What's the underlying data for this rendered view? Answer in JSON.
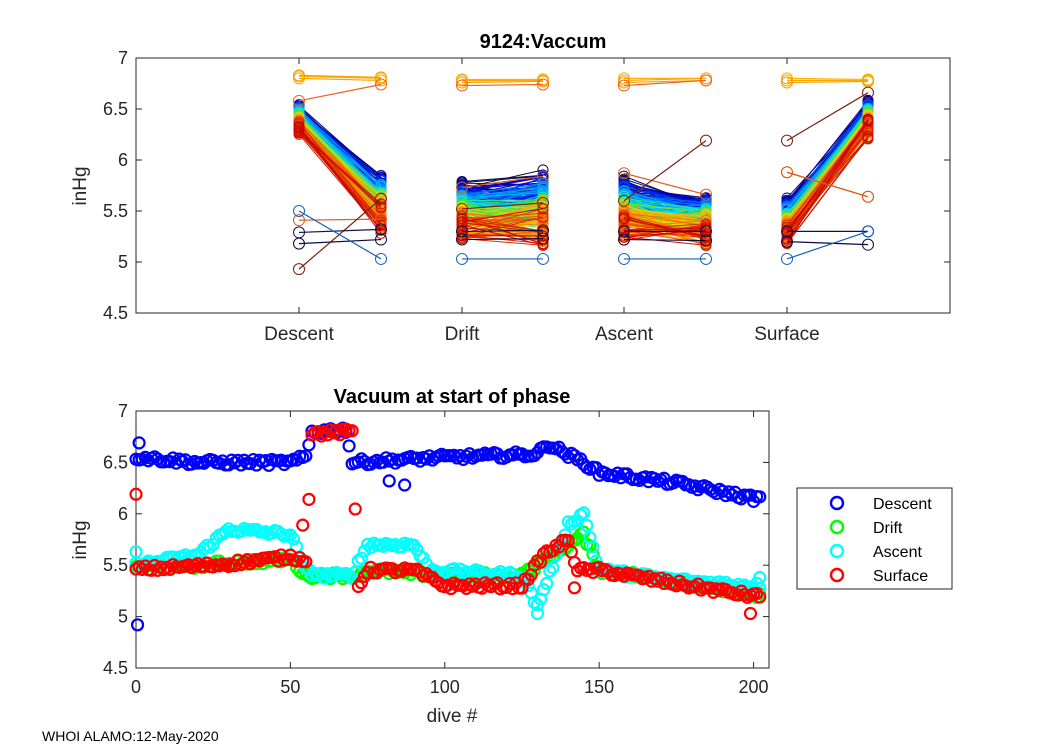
{
  "footer": "WHOI ALAMO:12-May-2020",
  "chart_data": [
    {
      "type": "line",
      "title": "9124:Vaccum",
      "xlabel": "",
      "ylabel": "inHg",
      "categories": [
        "Descent",
        "Drift",
        "Ascent",
        "Surface"
      ],
      "ylim": [
        4.5,
        7
      ],
      "yticks": [
        4.5,
        5,
        5.5,
        6,
        6.5,
        7
      ],
      "yticklabels": [
        "4.5",
        "5",
        "5.5",
        "6",
        "6.5",
        "7"
      ],
      "description_values": {
        "Descent": {
          "start_typical_range": [
            6.15,
            6.65
          ],
          "end_typical_range": [
            5.2,
            5.95
          ]
        },
        "Drift": {
          "start_typical_range": [
            5.05,
            5.95
          ],
          "end_typical_range": [
            5.05,
            6.0
          ]
        },
        "Ascent": {
          "start_typical_range": [
            5.05,
            6.0
          ],
          "end_typical_range": [
            5.05,
            5.75
          ]
        },
        "Surface": {
          "start_typical_range": [
            5.05,
            5.75
          ],
          "end_typical_range": [
            6.15,
            6.65
          ]
        }
      },
      "highlighted_series": [
        {
          "name": "high-1",
          "values": [
            [
              6.82,
              6.8
            ],
            [
              6.79,
              6.79
            ],
            [
              6.8,
              6.8
            ],
            [
              6.8,
              6.79
            ]
          ],
          "color": "#ffb000"
        },
        {
          "name": "high-2",
          "values": [
            [
              6.8,
              6.78
            ],
            [
              6.78,
              6.78
            ],
            [
              6.78,
              6.8
            ],
            [
              6.78,
              6.78
            ]
          ],
          "color": "#ffa500"
        },
        {
          "name": "high-3",
          "values": [
            [
              6.83,
              6.81
            ],
            [
              6.76,
              6.77
            ],
            [
              6.76,
              6.78
            ],
            [
              6.76,
              6.77
            ]
          ],
          "color": "#f6a100"
        },
        {
          "name": "orange-1",
          "values": [
            [
              6.58,
              6.74
            ],
            [
              6.73,
              6.74
            ],
            [
              6.73,
              6.78
            ],
            [
              5.88,
              5.64
            ]
          ],
          "color": "#f06020"
        },
        {
          "name": "orange-2",
          "values": [
            [
              5.41,
              5.42
            ],
            [
              5.73,
              5.84
            ],
            [
              5.87,
              5.66
            ],
            [
              5.88,
              5.64
            ]
          ],
          "color": "#e05a1a"
        },
        {
          "name": "dark-1",
          "values": [
            [
              4.93,
              5.62
            ],
            [
              5.52,
              5.58
            ],
            [
              5.6,
              6.19
            ],
            [
              6.19,
              6.66
            ]
          ],
          "color": "#7a2010"
        },
        {
          "name": "dark-2",
          "values": [
            [
              5.29,
              5.32
            ],
            [
              5.3,
              5.31
            ],
            [
              5.3,
              5.3
            ],
            [
              5.3,
              5.3
            ]
          ],
          "color": "#10104a"
        },
        {
          "name": "dark-3",
          "values": [
            [
              5.18,
              5.22
            ],
            [
              5.22,
              5.23
            ],
            [
              5.22,
              5.21
            ],
            [
              5.2,
              5.17
            ]
          ],
          "color": "#0a0a40"
        },
        {
          "name": "low-1",
          "values": [
            [
              5.5,
              5.03
            ],
            [
              5.03,
              5.03
            ],
            [
              5.03,
              5.03
            ],
            [
              5.03,
              5.3
            ]
          ],
          "color": "#1060c0"
        }
      ],
      "series_count_estimate": 200
    },
    {
      "type": "scatter",
      "title": "Vacuum at start of phase",
      "xlabel": "dive #",
      "ylabel": "inHg",
      "xlim": [
        0,
        205
      ],
      "ylim": [
        4.5,
        7
      ],
      "xticks": [
        0,
        50,
        100,
        150,
        200
      ],
      "xticklabels": [
        "0",
        "50",
        "100",
        "150",
        "200"
      ],
      "yticks": [
        4.5,
        5,
        5.5,
        6,
        6.5,
        7
      ],
      "yticklabels": [
        "4.5",
        "5",
        "5.5",
        "6",
        "6.5",
        "7"
      ],
      "legend_position": "outside-right",
      "series": [
        {
          "name": "Descent",
          "color": "#0000ff",
          "trend": [
            [
              0,
              6.55
            ],
            [
              20,
              6.5
            ],
            [
              50,
              6.5
            ],
            [
              55,
              6.55
            ],
            [
              57,
              6.8
            ],
            [
              68,
              6.82
            ],
            [
              70,
              6.5
            ],
            [
              100,
              6.55
            ],
            [
              130,
              6.58
            ],
            [
              133,
              6.68
            ],
            [
              145,
              6.5
            ],
            [
              150,
              6.4
            ],
            [
              175,
              6.3
            ],
            [
              200,
              6.15
            ]
          ],
          "outliers": [
            [
              1,
              6.69
            ],
            [
              0.5,
              4.92
            ],
            [
              82,
              6.32
            ],
            [
              87,
              6.28
            ]
          ]
        },
        {
          "name": "Drift",
          "color": "#00ff00",
          "trend": [
            [
              0,
              5.48
            ],
            [
              20,
              5.5
            ],
            [
              50,
              5.56
            ],
            [
              55,
              5.4
            ],
            [
              70,
              5.4
            ],
            [
              75,
              5.45
            ],
            [
              100,
              5.4
            ],
            [
              125,
              5.4
            ],
            [
              140,
              5.7
            ],
            [
              145,
              5.8
            ],
            [
              150,
              5.45
            ],
            [
              175,
              5.35
            ],
            [
              200,
              5.2
            ]
          ],
          "outliers": []
        },
        {
          "name": "Ascent",
          "color": "#00ffff",
          "trend": [
            [
              0,
              5.5
            ],
            [
              20,
              5.6
            ],
            [
              30,
              5.85
            ],
            [
              50,
              5.8
            ],
            [
              55,
              5.45
            ],
            [
              60,
              5.4
            ],
            [
              70,
              5.4
            ],
            [
              75,
              5.7
            ],
            [
              90,
              5.7
            ],
            [
              95,
              5.45
            ],
            [
              125,
              5.4
            ],
            [
              130,
              5.1
            ],
            [
              140,
              5.9
            ],
            [
              145,
              6.0
            ],
            [
              150,
              5.45
            ],
            [
              175,
              5.35
            ],
            [
              200,
              5.3
            ]
          ],
          "outliers": [
            [
              0,
              5.63
            ],
            [
              130,
              5.03
            ],
            [
              202,
              5.38
            ]
          ]
        },
        {
          "name": "Surface",
          "color": "#ff0000",
          "trend": [
            [
              0,
              5.46
            ],
            [
              25,
              5.5
            ],
            [
              50,
              5.58
            ],
            [
              55,
              5.55
            ],
            [
              57,
              6.78
            ],
            [
              70,
              6.8
            ],
            [
              72,
              5.3
            ],
            [
              75,
              5.45
            ],
            [
              90,
              5.45
            ],
            [
              100,
              5.3
            ],
            [
              125,
              5.3
            ],
            [
              132,
              5.6
            ],
            [
              140,
              5.75
            ],
            [
              143,
              5.45
            ],
            [
              150,
              5.45
            ],
            [
              175,
              5.32
            ],
            [
              200,
              5.2
            ]
          ],
          "outliers": [
            [
              0,
              6.19
            ],
            [
              54,
              5.89
            ],
            [
              142,
              5.28
            ],
            [
              199,
              5.03
            ]
          ]
        }
      ]
    }
  ]
}
